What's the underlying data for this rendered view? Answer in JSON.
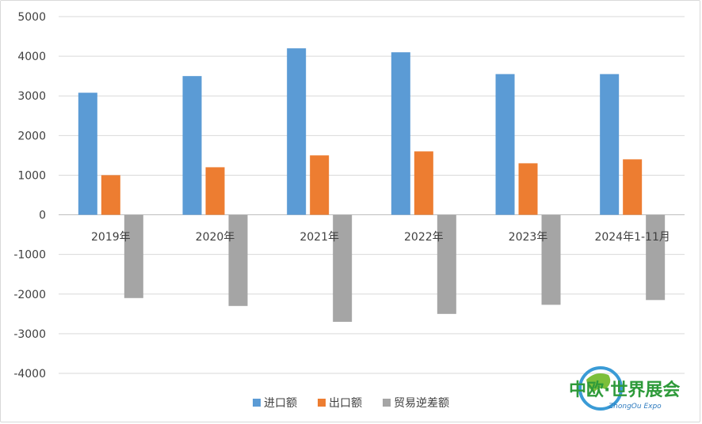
{
  "chart_data": {
    "type": "bar",
    "categories": [
      "2019年",
      "2020年",
      "2021年",
      "2022年",
      "2023年",
      "2024年1-11月"
    ],
    "series": [
      {
        "name": "进口额",
        "color": "#5b9bd5",
        "values": [
          3080,
          3500,
          4200,
          4100,
          3550,
          3550
        ]
      },
      {
        "name": "出口额",
        "color": "#ed7d31",
        "values": [
          1000,
          1200,
          1500,
          1600,
          1300,
          1400
        ]
      },
      {
        "name": "贸易逆差额",
        "color": "#a5a5a5",
        "values": [
          -2100,
          -2300,
          -2700,
          -2500,
          -2270,
          -2150
        ]
      }
    ],
    "ylim": [
      -4000,
      5000
    ],
    "yticks": [
      5000,
      4000,
      3000,
      2000,
      1000,
      0,
      -1000,
      -2000,
      -3000,
      -4000
    ],
    "grid": true,
    "legend": "bottom"
  },
  "logo": {
    "title": "中欧·世界展会",
    "subtitle": "ZhongOu Expo"
  }
}
